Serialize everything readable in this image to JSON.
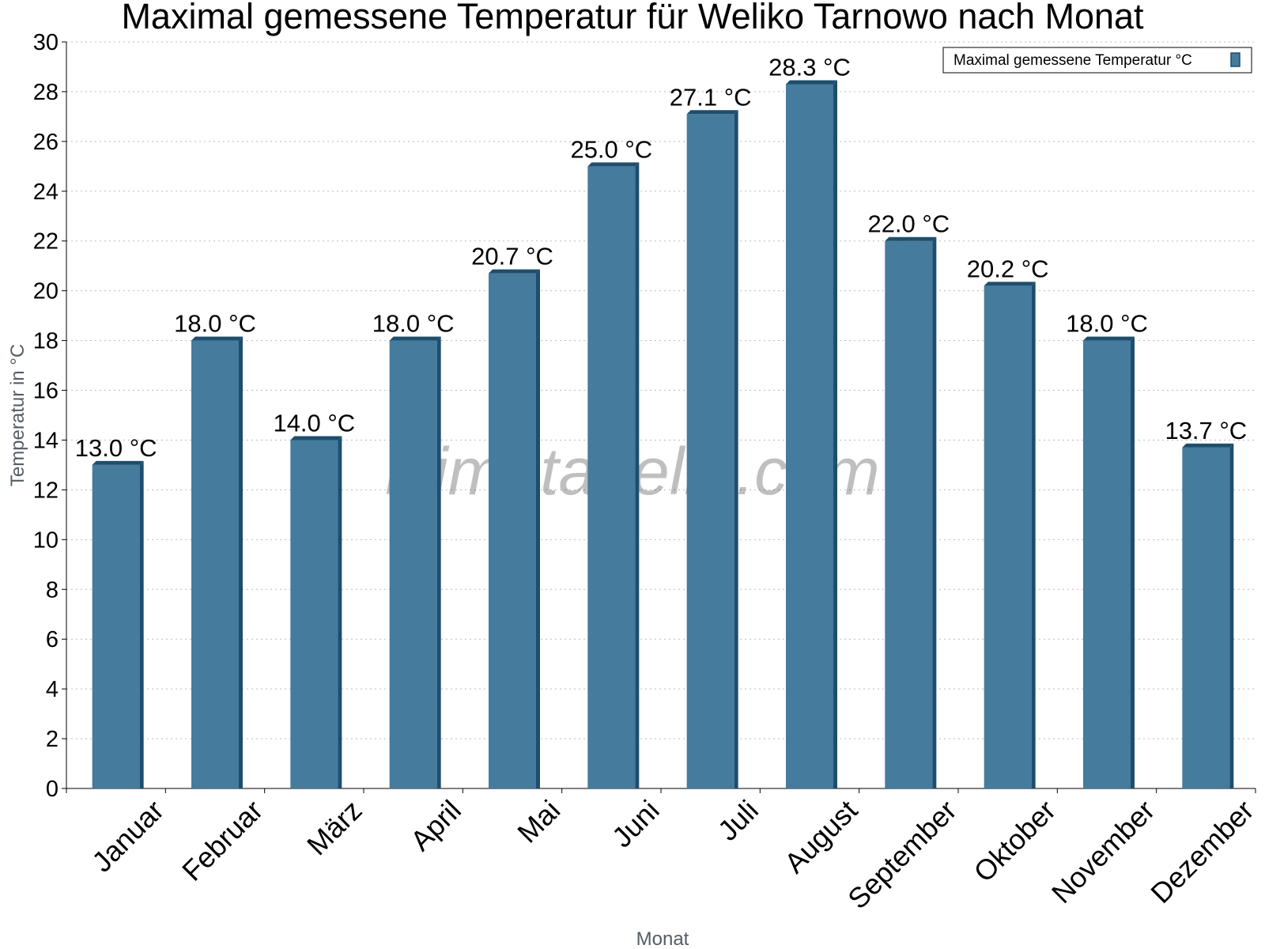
{
  "chart_data": {
    "type": "bar",
    "title": "Maximal gemessene Temperatur für Weliko Tarnowo nach Monat",
    "xlabel": "Monat",
    "ylabel": "Temperatur in °C",
    "categories": [
      "Januar",
      "Februar",
      "März",
      "April",
      "Mai",
      "Juni",
      "Juli",
      "August",
      "September",
      "Oktober",
      "November",
      "Dezember"
    ],
    "series": [
      {
        "name": "Maximal gemessene Temperatur °C",
        "values": [
          13.0,
          18.0,
          14.0,
          18.0,
          20.7,
          25.0,
          27.1,
          28.3,
          22.0,
          20.2,
          18.0,
          13.7
        ],
        "labels": [
          "13.0 °C",
          "18.0 °C",
          "14.0 °C",
          "18.0 °C",
          "20.7 °C",
          "25.0 °C",
          "27.1 °C",
          "28.3 °C",
          "22.0 °C",
          "20.2 °C",
          "18.0 °C",
          "13.7 °C"
        ]
      }
    ],
    "ylim": [
      0,
      30
    ],
    "yticks": [
      0,
      2,
      4,
      6,
      8,
      10,
      12,
      14,
      16,
      18,
      20,
      22,
      24,
      26,
      28,
      30
    ],
    "grid": true,
    "legend_position": "top-right"
  },
  "watermark": "klimatabelle.com",
  "colors": {
    "bar_front": "#457b9d",
    "bar_side": "#1d4e6d",
    "bar_top": "#1d4e6d",
    "grid": "#bbbbbb",
    "axis": "#000000"
  }
}
